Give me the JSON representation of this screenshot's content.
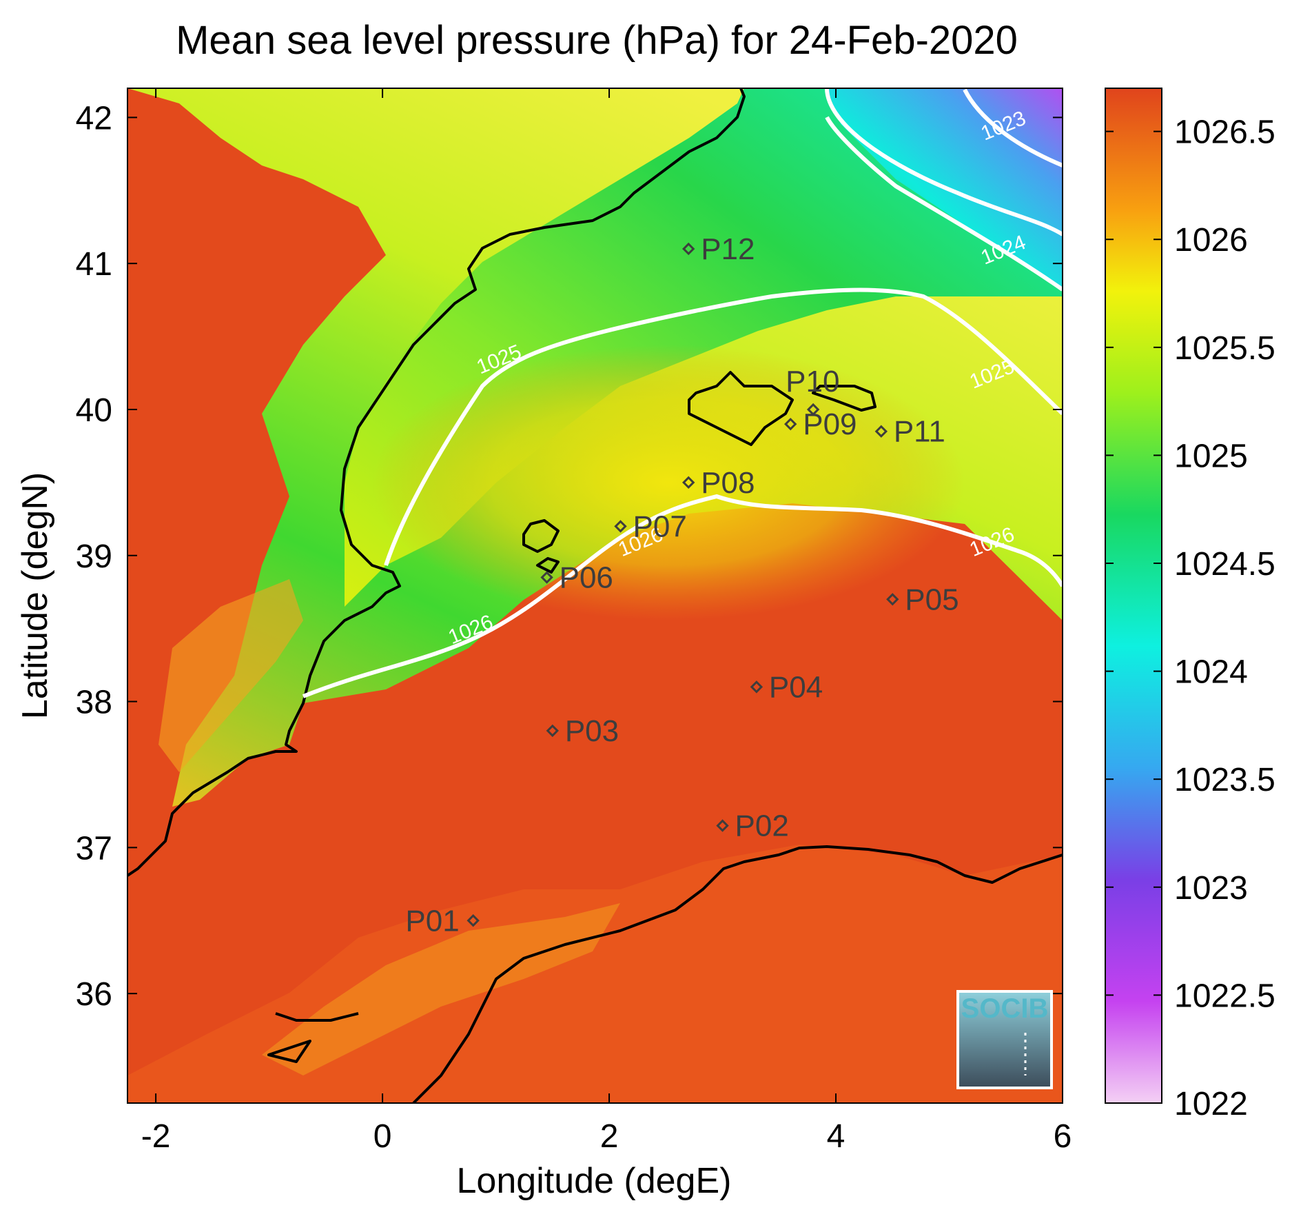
{
  "title": "Mean sea level pressure (hPa) for 24-Feb-2020",
  "xlabel": "Longitude (degE)",
  "ylabel": "Latitude (degN)",
  "x_ticks": [
    "-2",
    "0",
    "2",
    "4",
    "6"
  ],
  "y_ticks": [
    "42",
    "41",
    "40",
    "39",
    "38",
    "37",
    "36"
  ],
  "colorbar_ticks": [
    "1026.5",
    "1026",
    "1025.5",
    "1025",
    "1024.5",
    "1024",
    "1023.5",
    "1023",
    "1022.5",
    "1022"
  ],
  "logo_text": "SOCIB",
  "colors": {
    "high": "#e0441c",
    "yellow": "#f2f20c",
    "green": "#1fd43a",
    "cyan": "#0ef0e0",
    "violet": "#7a3fe6",
    "low": "#f0c8f2",
    "contour": "#ffffff",
    "coast": "#000000"
  },
  "chart_data": {
    "type": "heatmap",
    "xlim": [
      -2.25,
      6
    ],
    "ylim": [
      35.25,
      42.2
    ],
    "colorbar_range": [
      1022,
      1026.7
    ],
    "contour_labels": [
      {
        "text": "1023",
        "lon": 5.5,
        "lat": 41.9
      },
      {
        "text": "1024",
        "lon": 5.5,
        "lat": 41.05
      },
      {
        "text": "1025",
        "lon": 1.05,
        "lat": 40.3
      },
      {
        "text": "1025",
        "lon": 5.4,
        "lat": 40.2
      },
      {
        "text": "1026",
        "lon": 2.3,
        "lat": 39.05
      },
      {
        "text": "1026",
        "lon": 5.4,
        "lat": 39.05
      },
      {
        "text": "1026",
        "lon": 0.8,
        "lat": 38.45
      }
    ],
    "points": [
      {
        "name": "P01",
        "lon": 0.8,
        "lat": 36.5
      },
      {
        "name": "P02",
        "lon": 3.0,
        "lat": 37.15
      },
      {
        "name": "P03",
        "lon": 1.5,
        "lat": 37.8
      },
      {
        "name": "P04",
        "lon": 3.3,
        "lat": 38.1
      },
      {
        "name": "P05",
        "lon": 4.5,
        "lat": 38.7
      },
      {
        "name": "P06",
        "lon": 1.45,
        "lat": 38.85
      },
      {
        "name": "P07",
        "lon": 2.1,
        "lat": 39.2
      },
      {
        "name": "P08",
        "lon": 2.7,
        "lat": 39.5
      },
      {
        "name": "P09",
        "lon": 3.6,
        "lat": 39.9
      },
      {
        "name": "P10",
        "lon": 3.8,
        "lat": 40.0
      },
      {
        "name": "P11",
        "lon": 4.4,
        "lat": 39.85
      },
      {
        "name": "P12",
        "lon": 2.7,
        "lat": 41.1
      }
    ]
  }
}
